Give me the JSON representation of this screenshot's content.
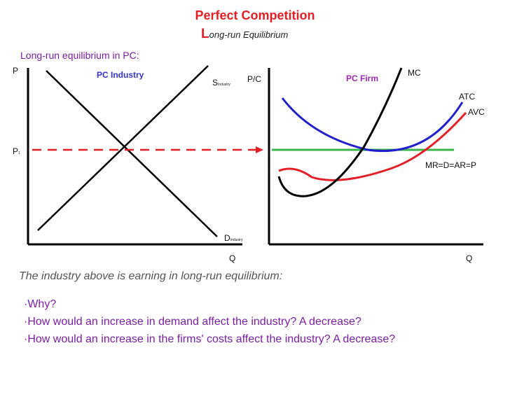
{
  "title": "Perfect Competition",
  "subtitle_initial": "L",
  "subtitle_rest": "ong-run Equilibrium",
  "intro": "Long-run equilibrium in PC:",
  "industry": {
    "y_axis": "P",
    "title": "PC Industry",
    "supply_main": "S",
    "supply_sub": "Industry",
    "demand_main": "D",
    "demand_sub": "Industry",
    "price_main": "P",
    "price_sub": "1",
    "x_axis": "Q"
  },
  "firm": {
    "y_axis": "P/C",
    "title": "PC Firm",
    "mc": "MC",
    "atc": "ATC",
    "avc": "AVC",
    "mr": "MR=D=AR=P",
    "x_axis": "Q"
  },
  "colors": {
    "mc": "#000000",
    "atc": "#1f1fcc",
    "avc": "#e31e24",
    "mr": "#3cb44b",
    "price_line": "#e31e24",
    "title": "#e31e24"
  },
  "question_intro": "The industry above is earning in long-run equilibrium:",
  "questions": [
    "·Why?",
    "·How would an increase in demand affect the industry? A decrease?",
    "·How would an increase in the firms' costs affect the industry? A decrease?"
  ]
}
